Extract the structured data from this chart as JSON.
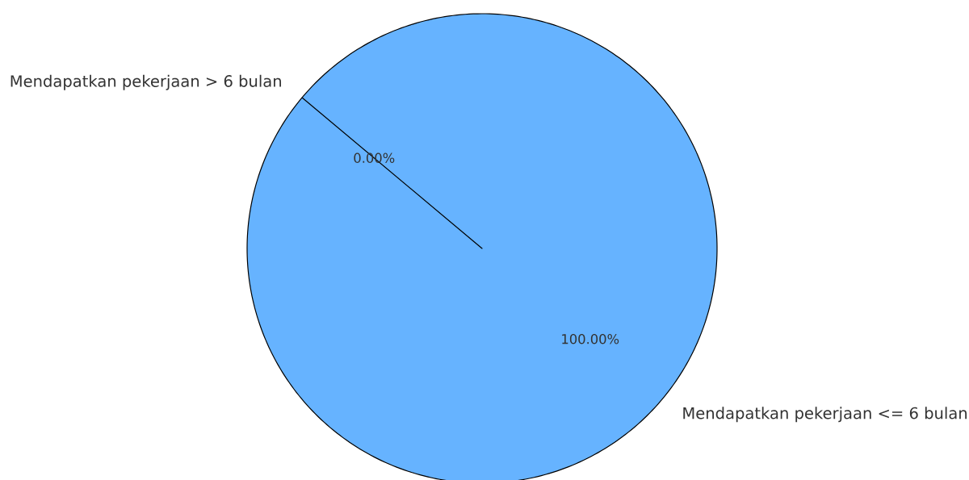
{
  "chart_data": {
    "type": "pie",
    "categories": [
      "Mendapatkan pekerjaan <= 6 bulan",
      "Mendapatkan pekerjaan > 6 bulan"
    ],
    "values": [
      100,
      0
    ],
    "colors": [
      "#66b3ff",
      "#ff9999"
    ],
    "value_labels": [
      "100.00%",
      "0.00%"
    ]
  }
}
